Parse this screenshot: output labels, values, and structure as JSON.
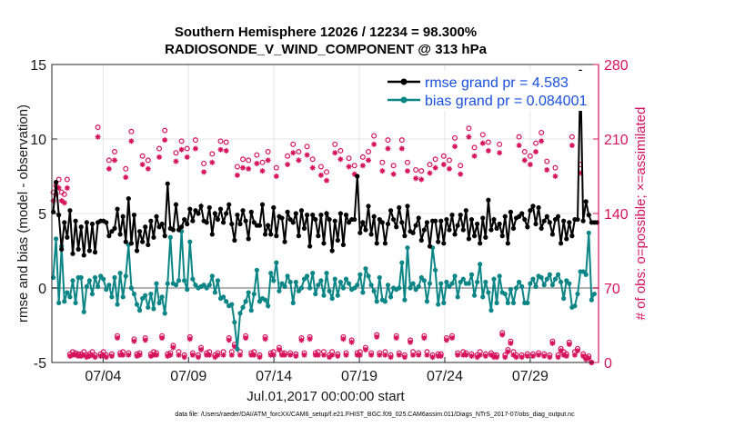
{
  "chart_data": {
    "type": "line",
    "title": "Southern Hemisphere 12026 / 12234 = 98.300%",
    "subtitle": "RADIOSONDE_V_WIND_COMPONENT @ 313 hPa",
    "xlabel": "Jul.01,2017 00:00:00 start",
    "ylabel_left": "rmse and bias (model - observation)",
    "ylabel_right": "# of obs: o=possible; ×=assimilated",
    "footer": "data file: /Users/raeder/DAI/ATM_forcXX/CAM6_setup/f.e21.FHIST_BGC.f09_025.CAM6assim.011/Diags_NTrS_2017-07/obs_diag_output.nc",
    "xlim": [
      1,
      33
    ],
    "ylim_left": [
      -5,
      15
    ],
    "ylim_right": [
      0,
      280
    ],
    "xticks": [
      {
        "x": 4,
        "label": "07/04"
      },
      {
        "x": 9,
        "label": "07/09"
      },
      {
        "x": 14,
        "label": "07/14"
      },
      {
        "x": 19,
        "label": "07/19"
      },
      {
        "x": 24,
        "label": "07/24"
      },
      {
        "x": 29,
        "label": "07/29"
      }
    ],
    "yticks_left": [
      -5,
      0,
      5,
      10,
      15
    ],
    "yticks_right": [
      0,
      70,
      140,
      210,
      280
    ],
    "grid": true,
    "legend": {
      "position": "top-right",
      "entries": [
        "rmse grand pr = 4.583",
        "bias grand pr = 0.084001"
      ]
    },
    "colors": {
      "rmse": "#000000",
      "bias": "#0b8585",
      "obs": "#d6125c",
      "legend_text": "#1a50e0",
      "right_axis": "#d6125c",
      "zero_line": "#b3b3b3",
      "grid": "#e6e6e6"
    },
    "series": [
      {
        "name": "rmse",
        "values": [
          5.1,
          7.1,
          4.9,
          2.6,
          4.4,
          3.4,
          5.2,
          2.3,
          4.5,
          2.6,
          4.1,
          2.2,
          4.4,
          2.5,
          4.3,
          2.4,
          4.4,
          4.5,
          4.5,
          4.4,
          3.5,
          3.8,
          4.0,
          5.3,
          3.6,
          4.8,
          3.1,
          6.0,
          3.0,
          4.9,
          2.5,
          3.8,
          3.1,
          4.1,
          2.9,
          4.5,
          3.4,
          4.8,
          4.1,
          4.3,
          3.5,
          7.0,
          4.0,
          3.9,
          5.6,
          3.9,
          4.1,
          4.6,
          4.3,
          5.3,
          4.5,
          5.2,
          5.0,
          5.5,
          4.5,
          4.4,
          5.4,
          3.6,
          5.0,
          4.6,
          5.3,
          4.4,
          5.0,
          5.6,
          4.3,
          3.2,
          4.9,
          4.3,
          5.2,
          4.5,
          3.3,
          5.1,
          4.4,
          4.2,
          4.2,
          5.6,
          3.6,
          4.2,
          3.6,
          5.4,
          3.5,
          4.8,
          4.7,
          3.1,
          5.1,
          4.6,
          4.4,
          5.0,
          3.5,
          5.2,
          4.0,
          4.9,
          2.8,
          4.9,
          4.6,
          3.5,
          4.9,
          3.0,
          5.0,
          4.6,
          2.5,
          4.5,
          3.2,
          5.0,
          2.9,
          4.9,
          4.4,
          4.6,
          4.6,
          7.5,
          3.7,
          4.4,
          3.9,
          5.5,
          3.6,
          4.8,
          3.0,
          4.6,
          4.4,
          3.0,
          4.3,
          5.2,
          4.6,
          4.1,
          5.4,
          4.4,
          3.5,
          5.5,
          3.8,
          3.7,
          4.2,
          4.7,
          3.2,
          3.9,
          4.4,
          2.8,
          4.5,
          4.5,
          3.1,
          4.5,
          3.0,
          4.6,
          3.9,
          4.9,
          3.6,
          4.2,
          4.9,
          3.9,
          5.2,
          3.3,
          4.6,
          3.5,
          4.3,
          3.0,
          4.7,
          3.4,
          5.9,
          3.9,
          4.6,
          4.0,
          4.3,
          3.5,
          4.8,
          3.0,
          5.1,
          4.0,
          4.7,
          4.8,
          5.0,
          4.6,
          4.1,
          5.2,
          5.5,
          4.3,
          5.4,
          4.0,
          4.5,
          4.8,
          4.4,
          3.6,
          4.6,
          4.8,
          3.0,
          4.5,
          3.3,
          4.4,
          3.5,
          4.6,
          4.6,
          14.5,
          4.5,
          5.8,
          4.9,
          4.4,
          4.4,
          4.4
        ]
      },
      {
        "name": "bias",
        "values": [
          0.7,
          3.3,
          -1.0,
          2.8,
          -0.9,
          -0.3,
          -0.6,
          0.5,
          -1.0,
          0.7,
          0.7,
          -1.6,
          0.1,
          0.5,
          -0.4,
          0.7,
          0.1,
          0.8,
          0.6,
          -0.1,
          0.2,
          -0.6,
          0.7,
          -1.1,
          1.0,
          -0.6,
          0.8,
          2.9,
          0.0,
          -0.4,
          -1.1,
          -1.5,
          -0.7,
          -0.5,
          -1.3,
          -0.4,
          -1.4,
          0.3,
          -1.0,
          -0.6,
          -1.7,
          0.3,
          3.4,
          0.3,
          0.2,
          0.5,
          3.8,
          0.5,
          -0.1,
          3.1,
          0.6,
          0.2,
          0.0,
          0.1,
          0.2,
          0.0,
          0.2,
          0.8,
          -0.3,
          0.5,
          -0.7,
          -0.6,
          -0.9,
          -1.2,
          -1.1,
          -2.3,
          -4.1,
          -1.7,
          -1.3,
          -0.9,
          -0.3,
          -1.5,
          -0.4,
          1.2,
          -0.9,
          -0.7,
          -0.8,
          -1.2,
          1.0,
          0.5,
          1.7,
          -0.2,
          0.3,
          0.1,
          0.8,
          0.4,
          -1.0,
          0.4,
          -0.2,
          0.0,
          0.6,
          0.8,
          0.0,
          1.0,
          -0.4,
          0.2,
          0.5,
          -0.5,
          1.0,
          -0.2,
          -0.7,
          0.6,
          -0.5,
          0.4,
          0.0,
          0.6,
          0.3,
          -0.1,
          0.0,
          0.2,
          0.9,
          -0.3,
          1.3,
          0.8,
          0.2,
          -0.2,
          -0.9,
          0.7,
          -0.8,
          -0.9,
          0.2,
          -0.6,
          0.0,
          -0.1,
          0.0,
          1.7,
          -0.8,
          2.7,
          0.0,
          0.3,
          -0.1,
          0.1,
          0.7,
          0.5,
          -0.9,
          0.3,
          2.7,
          1.2,
          -1.1,
          0.3,
          -1.0,
          0.4,
          0.1,
          0.3,
          0.8,
          -0.6,
          0.4,
          0.6,
          0.3,
          0.3,
          0.9,
          -0.5,
          0.4,
          1.6,
          -0.6,
          0.4,
          -0.3,
          -1.5,
          0.6,
          -1.0,
          0.8,
          -0.3,
          -0.4,
          -1.0,
          -0.1,
          -1.0,
          0.0,
          0.4,
          0.1,
          -1.0,
          -1.0,
          0.3,
          0.6,
          0.1,
          0.8,
          0.7,
          0.2,
          0.6,
          0.9,
          0.2,
          0.6,
          0.9,
          0.4,
          -0.7,
          0.5,
          0.3,
          -1.3,
          -1.2,
          -0.4,
          1.1,
          1.1,
          0.9,
          3.7,
          -0.8,
          -0.4
        ]
      },
      {
        "name": "obs_possible",
        "values": [
          160,
          166,
          172,
          160,
          158,
          172,
          8,
          10,
          9,
          8,
          8,
          10,
          7,
          8,
          10,
          7,
          221,
          8,
          10,
          7,
          190,
          8,
          198,
          25,
          9,
          10,
          182,
          9,
          217,
          22,
          8,
          9,
          194,
          23,
          190,
          8,
          10,
          9,
          201,
          25,
          218,
          8,
          9,
          16,
          197,
          10,
          208,
          7,
          201,
          24,
          9,
          209,
          7,
          14,
          187,
          9,
          10,
          196,
          7,
          9,
          208,
          10,
          207,
          23,
          10,
          17,
          184,
          10,
          191,
          25,
          190,
          9,
          10,
          195,
          7,
          188,
          24,
          198,
          9,
          10,
          183,
          14,
          9,
          9,
          194,
          9,
          205,
          8,
          198,
          23,
          9,
          203,
          24,
          191,
          9,
          10,
          184,
          10,
          179,
          7,
          10,
          205,
          8,
          199,
          24,
          9,
          192,
          21,
          185,
          9,
          10,
          193,
          14,
          198,
          9,
          213,
          26,
          9,
          188,
          10,
          209,
          7,
          185,
          25,
          9,
          209,
          7,
          188,
          21,
          10,
          181,
          9,
          180,
          25,
          10,
          186,
          7,
          191,
          8,
          8,
          194,
          23,
          190,
          25,
          211,
          9,
          185,
          10,
          9,
          220,
          8,
          202,
          7,
          10,
          214,
          8,
          207,
          9,
          7,
          7,
          205,
          28,
          7,
          12,
          20,
          10,
          7,
          212,
          7,
          198,
          8,
          194,
          8,
          206,
          9,
          216,
          8,
          189,
          7,
          20,
          183,
          7,
          13,
          10,
          8,
          19,
          212,
          10,
          13,
          186,
          8,
          5,
          6,
          0
        ]
      },
      {
        "name": "obs_assimilated",
        "values": [
          152,
          158,
          164,
          152,
          150,
          164,
          6,
          7,
          7,
          6,
          6,
          7,
          5,
          6,
          7,
          5,
          212,
          6,
          7,
          5,
          182,
          6,
          190,
          23,
          7,
          7,
          174,
          7,
          208,
          20,
          6,
          7,
          186,
          21,
          182,
          6,
          7,
          7,
          193,
          23,
          209,
          6,
          7,
          14,
          189,
          7,
          200,
          5,
          193,
          22,
          7,
          201,
          5,
          12,
          179,
          7,
          7,
          188,
          5,
          7,
          200,
          7,
          199,
          21,
          7,
          15,
          176,
          7,
          183,
          23,
          182,
          7,
          7,
          187,
          5,
          180,
          22,
          190,
          7,
          7,
          175,
          12,
          7,
          7,
          186,
          7,
          197,
          6,
          190,
          21,
          7,
          195,
          22,
          183,
          7,
          7,
          176,
          7,
          171,
          5,
          7,
          197,
          6,
          191,
          22,
          7,
          184,
          19,
          177,
          7,
          7,
          185,
          12,
          190,
          7,
          205,
          24,
          7,
          180,
          7,
          201,
          5,
          177,
          23,
          7,
          201,
          5,
          180,
          19,
          7,
          173,
          7,
          172,
          23,
          7,
          178,
          5,
          183,
          6,
          6,
          186,
          21,
          182,
          23,
          203,
          7,
          177,
          7,
          7,
          212,
          6,
          194,
          5,
          7,
          206,
          6,
          199,
          7,
          5,
          5,
          197,
          26,
          5,
          10,
          18,
          7,
          5,
          204,
          5,
          190,
          6,
          186,
          6,
          198,
          7,
          208,
          6,
          181,
          5,
          18,
          175,
          5,
          11,
          7,
          6,
          17,
          204,
          7,
          11,
          178,
          6,
          3,
          4,
          0
        ]
      }
    ]
  }
}
